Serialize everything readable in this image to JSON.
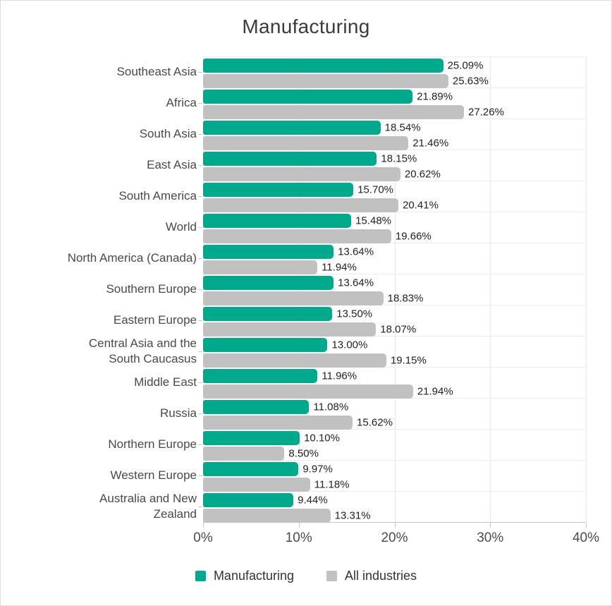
{
  "title": "Manufacturing",
  "colors": {
    "manufacturing": "#00A88C",
    "all_industries": "#C1C1C1",
    "gridline": "#E7E7E7",
    "axis_line": "#C6C6C6"
  },
  "x_axis": {
    "ticks": [
      "0%",
      "10%",
      "20%",
      "30%",
      "40%"
    ],
    "min": 0,
    "max": 40
  },
  "legend": [
    {
      "label": "Manufacturing"
    },
    {
      "label": "All industries"
    }
  ],
  "chart_data": {
    "type": "bar",
    "orientation": "horizontal",
    "title": "Manufacturing",
    "xlabel": "",
    "ylabel": "",
    "xlim": [
      0,
      40
    ],
    "grid": true,
    "legend_position": "bottom",
    "categories": [
      "Southeast Asia",
      "Africa",
      "South Asia",
      "East Asia",
      "South America",
      "World",
      "North America (Canada)",
      "Southern Europe",
      "Eastern Europe",
      "Central Asia and the\nSouth Caucasus",
      "Middle East",
      "Russia",
      "Northern Europe",
      "Western Europe",
      "Australia and New\nZealand"
    ],
    "series": [
      {
        "name": "Manufacturing",
        "color": "#00A88C",
        "values": [
          25.09,
          21.89,
          18.54,
          18.15,
          15.7,
          15.48,
          13.64,
          13.64,
          13.5,
          13.0,
          11.96,
          11.08,
          10.1,
          9.97,
          9.44
        ],
        "labels": [
          "25.09%",
          "21.89%",
          "18.54%",
          "18.15%",
          "15.70%",
          "15.48%",
          "13.64%",
          "13.64%",
          "13.50%",
          "13.00%",
          "11.96%",
          "11.08%",
          "10.10%",
          "9.97%",
          "9.44%"
        ]
      },
      {
        "name": "All industries",
        "color": "#C1C1C1",
        "values": [
          25.63,
          27.26,
          21.46,
          20.62,
          20.41,
          19.66,
          11.94,
          18.83,
          18.07,
          19.15,
          21.94,
          15.62,
          8.5,
          11.18,
          13.31
        ],
        "labels": [
          "25.63%",
          "27.26%",
          "21.46%",
          "20.62%",
          "20.41%",
          "19.66%",
          "11.94%",
          "18.83%",
          "18.07%",
          "19.15%",
          "21.94%",
          "15.62%",
          "8.50%",
          "11.18%",
          "13.31%"
        ]
      }
    ]
  }
}
